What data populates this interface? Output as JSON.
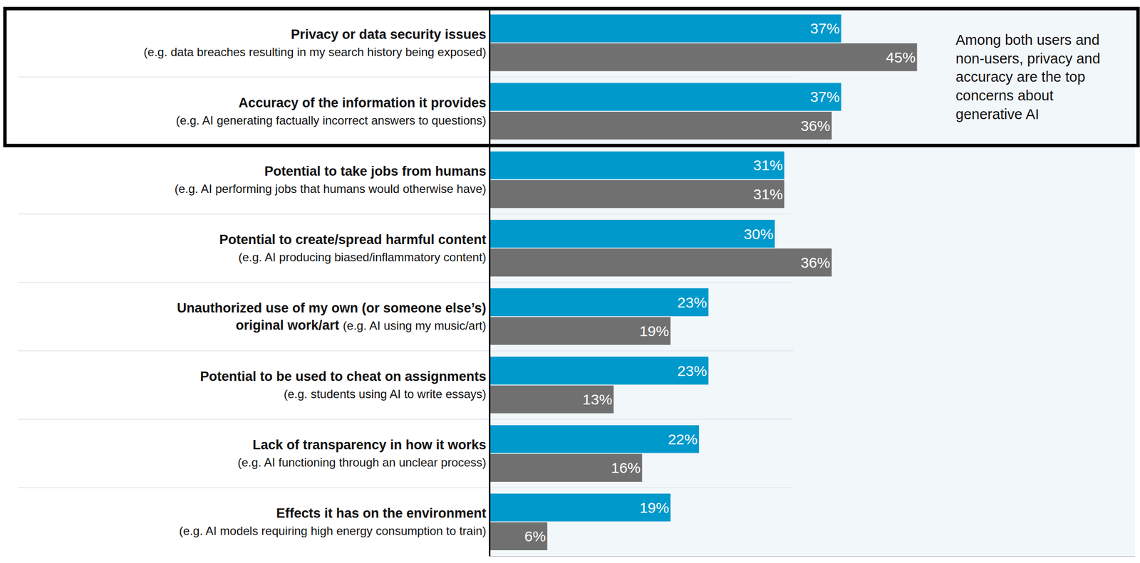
{
  "chart_data": {
    "type": "bar",
    "orientation": "horizontal",
    "categories": [
      "Privacy or data security issues",
      "Accuracy of the information it provides",
      "Potential to take jobs from humans",
      "Potential to create/spread harmful content",
      "Unauthorized use of my own (or someone else’s) original work/art",
      "Potential to be used to cheat on assignments",
      "Lack of transparency in how it works",
      "Effects it has on the environment"
    ],
    "subtitles": [
      "(e.g. data breaches resulting in my search history being exposed)",
      "(e.g. AI generating factually incorrect answers to questions)",
      "(e.g. AI performing jobs that humans would otherwise have)",
      "(e.g. AI producing biased/inflammatory content)",
      "(e.g. AI using my music/art)",
      "(e.g. students using AI to write essays)",
      "(e.g. AI functioning through an unclear process)",
      "(e.g. AI models requiring high energy consumption to train)"
    ],
    "series": [
      {
        "color": "#0099cc",
        "values": [
          37,
          37,
          31,
          30,
          23,
          23,
          22,
          19
        ],
        "value_labels": [
          "37%",
          "37%",
          "31%",
          "30%",
          "23%",
          "23%",
          "22%",
          "19%"
        ]
      },
      {
        "color": "#707070",
        "values": [
          45,
          36,
          31,
          36,
          19,
          13,
          16,
          6
        ],
        "value_labels": [
          "45%",
          "36%",
          "31%",
          "36%",
          "19%",
          "13%",
          "16%",
          "6%"
        ]
      }
    ],
    "xlim": [
      0,
      68
    ],
    "data_labels": true,
    "tick_labels": "y",
    "grid": false,
    "annotations": [
      {
        "text": "Among both users and non-users, privacy and accuracy are the top concerns about generative AI"
      }
    ]
  }
}
